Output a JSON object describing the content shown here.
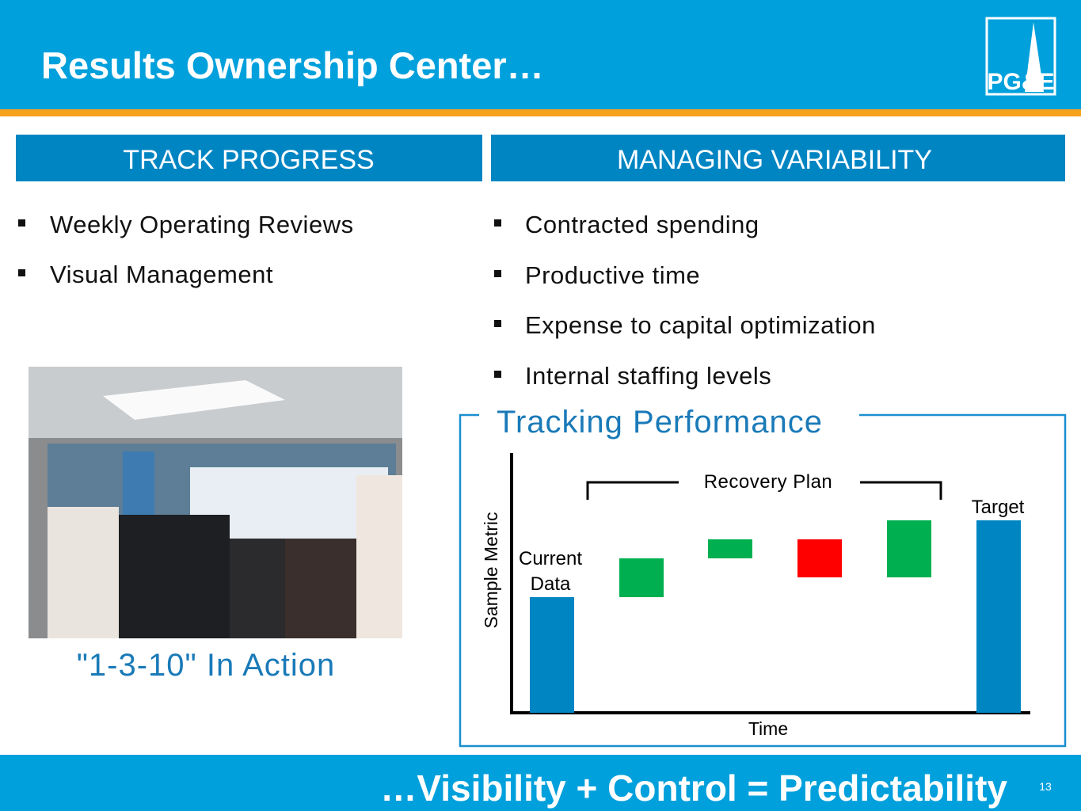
{
  "header": {
    "title": "Results Ownership Center…",
    "logo": "PG&E"
  },
  "sections": [
    {
      "heading": "TRACK PROGRESS",
      "bullets": [
        "Weekly Operating Reviews",
        "Visual Management"
      ]
    },
    {
      "heading": "MANAGING VARIABILITY",
      "bullets": [
        "Contracted spending",
        "Productive time",
        "Expense to capital optimization",
        "Internal staffing levels"
      ]
    }
  ],
  "photo_caption": "\"1-3-10\" In Action",
  "diagram": {
    "title": "Tracking Performance",
    "y_label": "Sample Metric",
    "x_label": "Time",
    "bracket_label": "Recovery Plan",
    "start_label": "Current Data",
    "end_label": "Target"
  },
  "footer": {
    "tagline": "…Visibility + Control = Predictability",
    "page_number": 13
  }
}
